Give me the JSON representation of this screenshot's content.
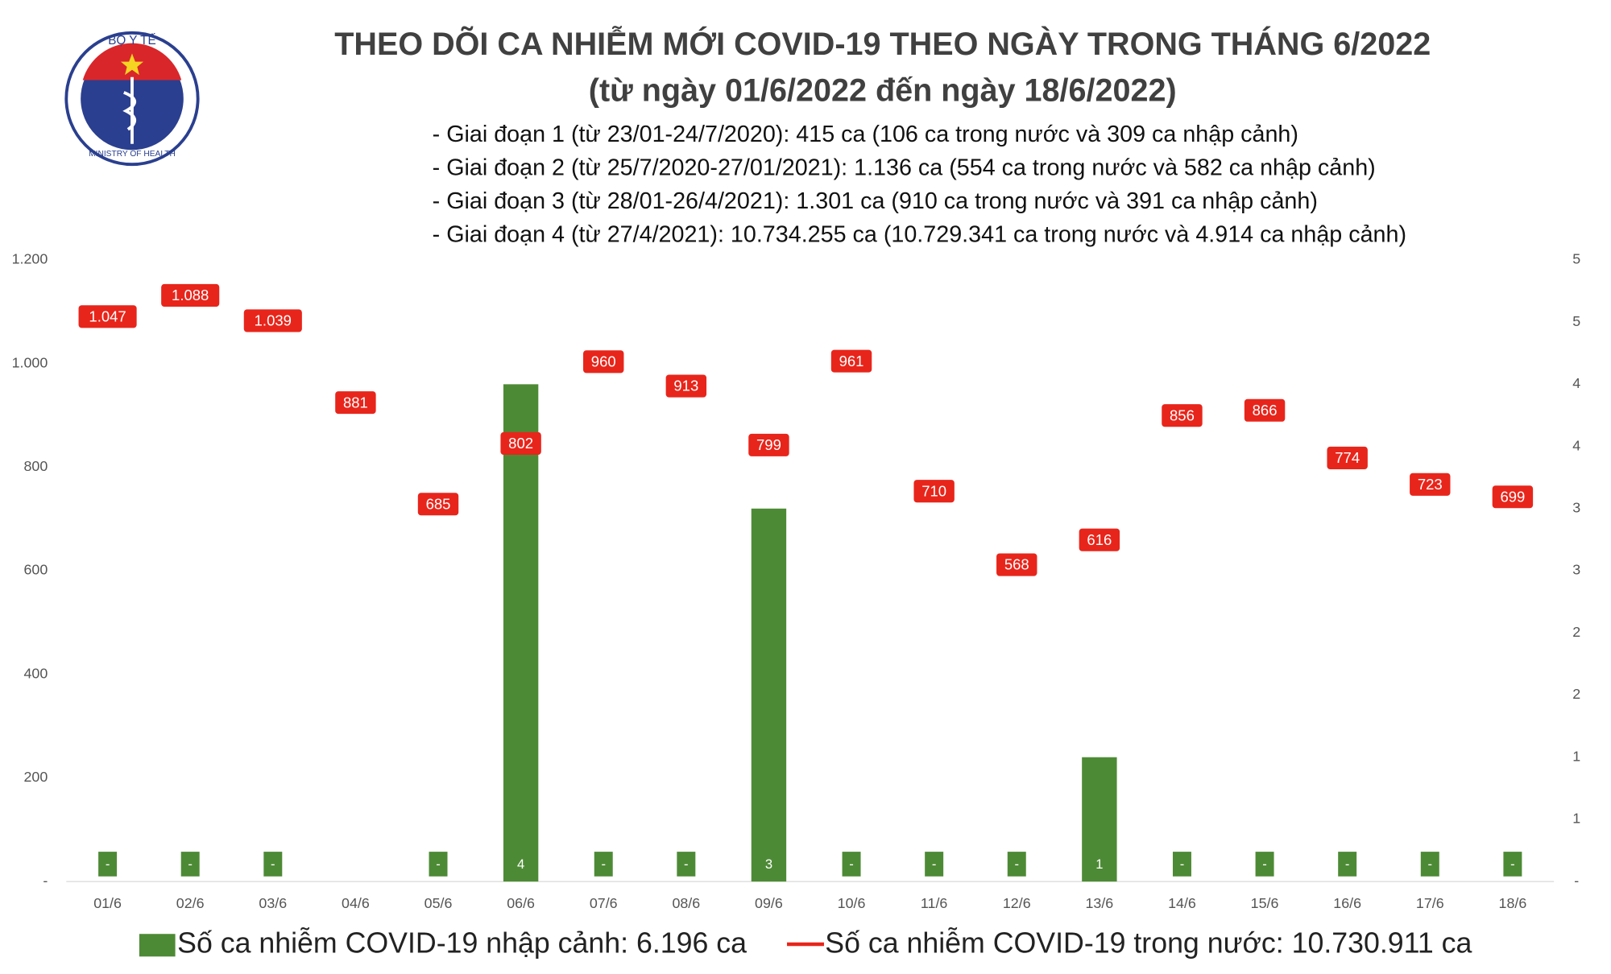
{
  "logo": {
    "top_text": "BỘ Y TẾ",
    "bottom_text": "MINISTRY OF HEALTH"
  },
  "chart_data": {
    "type": "bar-line",
    "title": "THEO DÕI CA NHIỄM MỚI COVID-19 THEO NGÀY TRONG THÁNG 6/2022",
    "subtitle": "(từ ngày 01/6/2022 đến ngày 18/6/2022)",
    "notes": [
      "- Giai đoạn 1 (từ 23/01-24/7/2020): 415 ca (106 ca trong nước và 309 ca nhập cảnh)",
      "- Giai đoạn 2 (từ 25/7/2020-27/01/2021): 1.136 ca (554 ca trong nước và 582 ca nhập cảnh)",
      "- Giai đoạn 3 (từ 28/01-26/4/2021): 1.301 ca (910 ca trong nước và 391 ca nhập cảnh)",
      "- Giai đoạn 4 (từ 27/4/2021): 10.734.255 ca (10.729.341 ca trong nước và 4.914 ca nhập cảnh)"
    ],
    "categories": [
      "01/6",
      "02/6",
      "03/6",
      "04/6",
      "05/6",
      "06/6",
      "07/6",
      "08/6",
      "09/6",
      "10/6",
      "11/6",
      "12/6",
      "13/6",
      "14/6",
      "15/6",
      "16/6",
      "17/6",
      "18/6"
    ],
    "series": [
      {
        "name": "Số ca nhiễm COVID-19 nhập cảnh: 6.196 ca",
        "type": "bar",
        "axis": "y2",
        "color": "#4d8a35",
        "values": [
          0,
          0,
          0,
          null,
          0,
          4,
          0,
          0,
          3,
          0,
          0,
          0,
          1,
          0,
          0,
          0,
          0,
          0
        ],
        "value_labels": [
          "-",
          "-",
          "-",
          null,
          "-",
          "4",
          "-",
          "-",
          "3",
          "-",
          "-",
          "-",
          "1",
          "-",
          "-",
          "-",
          "-",
          "-"
        ]
      },
      {
        "name": "Số ca nhiễm COVID-19 trong nước: 10.730.911 ca",
        "type": "line",
        "color": "#e8251b",
        "values": [
          1047,
          1088,
          1039,
          881,
          685,
          802,
          960,
          913,
          799,
          961,
          710,
          568,
          616,
          856,
          866,
          774,
          723,
          699
        ],
        "value_labels": [
          "1.047",
          "1.088",
          "1.039",
          "881",
          "685",
          "802",
          "960",
          "913",
          "799",
          "961",
          "710",
          "568",
          "616",
          "856",
          "866",
          "774",
          "723",
          "699"
        ]
      }
    ],
    "ylim": [
      0,
      1200
    ],
    "yticks": [
      {
        "value": 0,
        "label": "-"
      },
      200,
      400,
      600,
      800,
      {
        "value": 1000,
        "label": "1.000"
      },
      {
        "value": 1200,
        "label": "1.200"
      }
    ],
    "y2lim": [
      0,
      5
    ],
    "y2ticks": [
      {
        "value": 0,
        "label": "-"
      },
      {
        "value": 0.5,
        "label": "1"
      },
      1,
      {
        "value": 1.5,
        "label": "2"
      },
      2,
      {
        "value": 2.5,
        "label": "3"
      },
      3,
      {
        "value": 3.5,
        "label": "4"
      },
      4,
      {
        "value": 4.5,
        "label": "5"
      },
      5
    ],
    "grid": false
  }
}
